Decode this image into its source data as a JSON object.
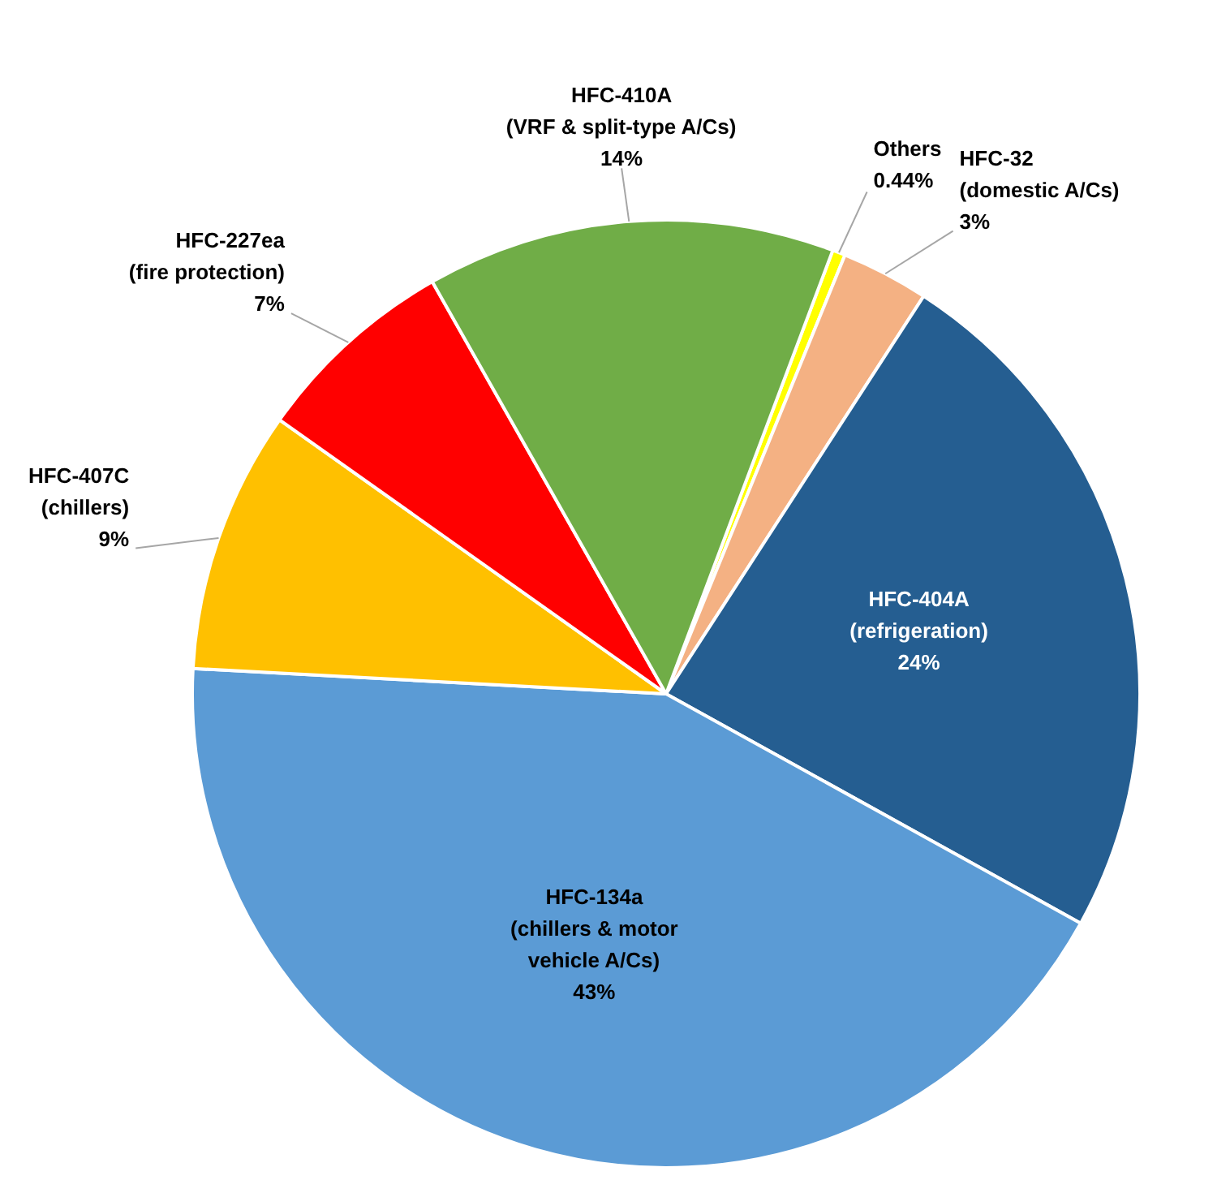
{
  "chart_data": {
    "type": "pie",
    "categories": [
      "Others",
      "HFC-32 (domestic A/Cs)",
      "HFC-404A (refrigeration)",
      "HFC-134a (chillers & motor vehicle A/Cs)",
      "HFC-407C (chillers)",
      "HFC-227ea (fire protection)",
      "HFC-410A (VRF & split-type A/Cs)"
    ],
    "values": [
      0.44,
      3,
      24,
      43,
      9,
      7,
      14
    ],
    "colors": [
      "#ffff00",
      "#f4b183",
      "#255e91",
      "#5b9bd5",
      "#ffc000",
      "#ff0000",
      "#70ad47"
    ],
    "value_labels": [
      "0.44%",
      "3%",
      "24%",
      "43%",
      "9%",
      "7%",
      "14%"
    ]
  }
}
